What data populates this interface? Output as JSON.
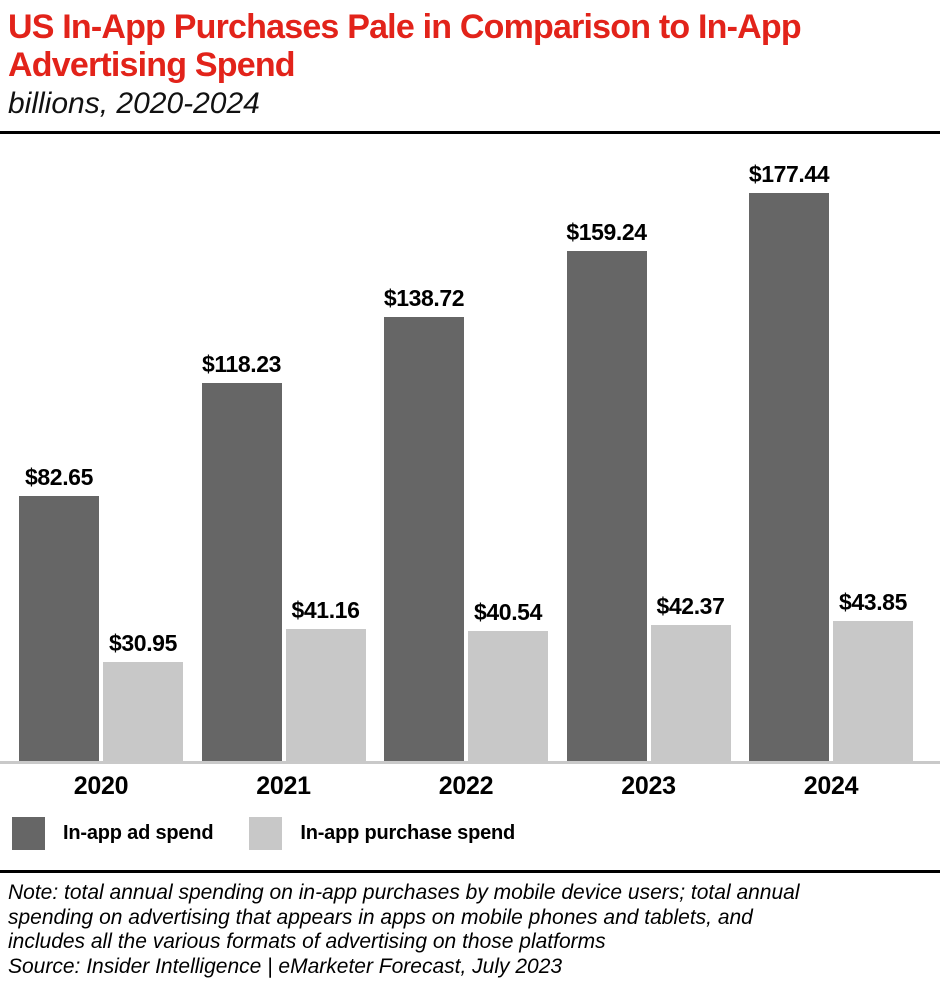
{
  "header": {
    "title_lines": [
      "US In-App Purchases Pale in Comparison to In-App",
      "Advertising Spend"
    ],
    "subtitle": "billions, 2020-2024",
    "title_color": "#e2231a"
  },
  "chart_data": {
    "type": "bar",
    "title": "US In-App Purchases Pale in Comparison to In-App Advertising Spend",
    "subtitle": "billions, 2020-2024",
    "unit": "US$ billions",
    "categories": [
      "2020",
      "2021",
      "2022",
      "2023",
      "2024"
    ],
    "series": [
      {
        "name": "In-app ad spend",
        "color": "#666666",
        "values": [
          82.65,
          118.23,
          138.72,
          159.24,
          177.44
        ],
        "labels": [
          "$82.65",
          "$118.23",
          "$138.72",
          "$159.24",
          "$177.44"
        ]
      },
      {
        "name": "In-app purchase spend",
        "color": "#c8c8c8",
        "values": [
          30.95,
          41.16,
          40.54,
          42.37,
          43.85
        ],
        "labels": [
          "$30.95",
          "$41.16",
          "$40.54",
          "$42.37",
          "$43.85"
        ]
      }
    ],
    "ylim": [
      0,
      185
    ],
    "grid": false,
    "legend_position": "bottom-left",
    "axis_line_color": "#c9c9c9"
  },
  "footer": {
    "note_lines": [
      "Note: total annual spending on in-app purchases by mobile device users; total annual",
      "spending on advertising that appears in apps on mobile phones and tablets, and",
      "includes all the various formats of advertising on those platforms"
    ],
    "source": "Source: Insider Intelligence | eMarketer Forecast, July 2023"
  }
}
